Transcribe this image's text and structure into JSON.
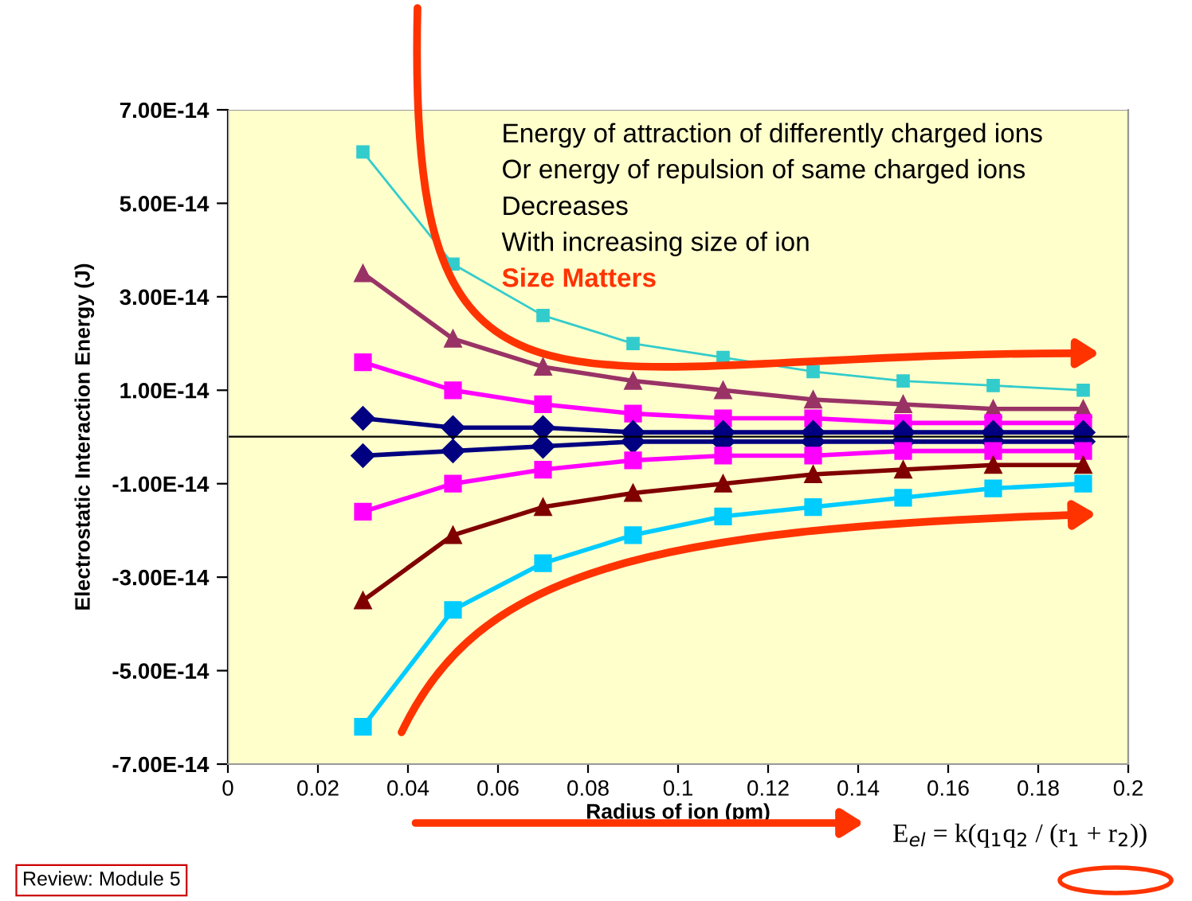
{
  "chart_data": {
    "type": "line",
    "xlabel": "Radius of ion (pm)",
    "ylabel": "Electrostatic Interaction Energy (J)",
    "annotations": [
      "Energy of attraction of differently charged ions",
      "Or energy of repulsion of same charged ions",
      "Decreases",
      "With increasing size of ion",
      "Size Matters",
      "Review: Module 5",
      "E$_{el}$ = k(q$_{1}$q$_{2}$ / (r$_{1}$ + r$_{2}$))"
    ],
    "x": [
      0.03,
      0.05,
      0.07,
      0.09,
      0.11,
      0.13,
      0.15,
      0.17,
      0.19
    ],
    "series": [
      {
        "color": "#33cccc",
        "marker": "square",
        "values": [
          6.1e-14,
          3.7e-14,
          2.6e-14,
          2e-14,
          1.7e-14,
          1.4e-14,
          1.2e-14,
          1.1e-14,
          1e-14
        ]
      },
      {
        "color": "#993366",
        "marker": "triangle",
        "values": [
          3.5e-14,
          2.1e-14,
          1.5e-14,
          1.2e-14,
          1e-14,
          8e-15,
          7e-15,
          6e-15,
          6e-15
        ]
      },
      {
        "color": "#ff00ff",
        "marker": "square",
        "values": [
          1.6e-14,
          1e-14,
          7e-15,
          5e-15,
          4e-15,
          4e-15,
          3e-15,
          3e-15,
          3e-15
        ]
      },
      {
        "color": "#000080",
        "marker": "diamond",
        "values": [
          4e-15,
          2e-15,
          2e-15,
          1e-15,
          1e-15,
          1e-15,
          1e-15,
          1e-15,
          1e-15
        ]
      },
      {
        "color": "#000080",
        "marker": "diamond",
        "values": [
          -4e-15,
          -3e-15,
          -2e-15,
          -1e-15,
          -1e-15,
          -1e-15,
          -1e-15,
          -1e-15,
          -1e-15
        ]
      },
      {
        "color": "#ff00ff",
        "marker": "square",
        "values": [
          -1.6e-14,
          -1e-14,
          -7e-15,
          -5e-15,
          -4e-15,
          -4e-15,
          -3e-15,
          -3e-15,
          -3e-15
        ]
      },
      {
        "color": "#800000",
        "marker": "triangle",
        "values": [
          -3.5e-14,
          -2.1e-14,
          -1.5e-14,
          -1.2e-14,
          -1e-14,
          -8e-15,
          -7e-15,
          -6e-15,
          -6e-15
        ]
      },
      {
        "color": "#00ccff",
        "marker": "square",
        "values": [
          -6.2e-14,
          -3.7e-14,
          -2.7e-14,
          -2.1e-14,
          -1.7e-14,
          -1.5e-14,
          -1.3e-14,
          -1.1e-14,
          -1e-14
        ]
      }
    ],
    "xlim": [
      0,
      0.2
    ],
    "xticks": [
      0,
      0.02,
      0.04,
      0.06,
      0.08,
      0.1,
      0.12,
      0.14,
      0.16,
      0.18,
      0.2
    ],
    "ylim": [
      -7e-14,
      7e-14
    ],
    "yticks": [
      {
        "value": -7e-14,
        "label": "-7.00E-14"
      },
      {
        "value": -5e-14,
        "label": "-5.00E-14"
      },
      {
        "value": -3e-14,
        "label": "-3.00E-14"
      },
      {
        "value": -1e-14,
        "label": "-1.00E-14"
      },
      {
        "value": 1e-14,
        "label": "1.00E-14"
      },
      {
        "value": 3e-14,
        "label": "3.00E-14"
      },
      {
        "value": 5e-14,
        "label": "5.00E-14"
      },
      {
        "value": 7e-14,
        "label": "7.00E-14"
      }
    ],
    "grid": false,
    "legend": false,
    "line_style": "solid"
  }
}
